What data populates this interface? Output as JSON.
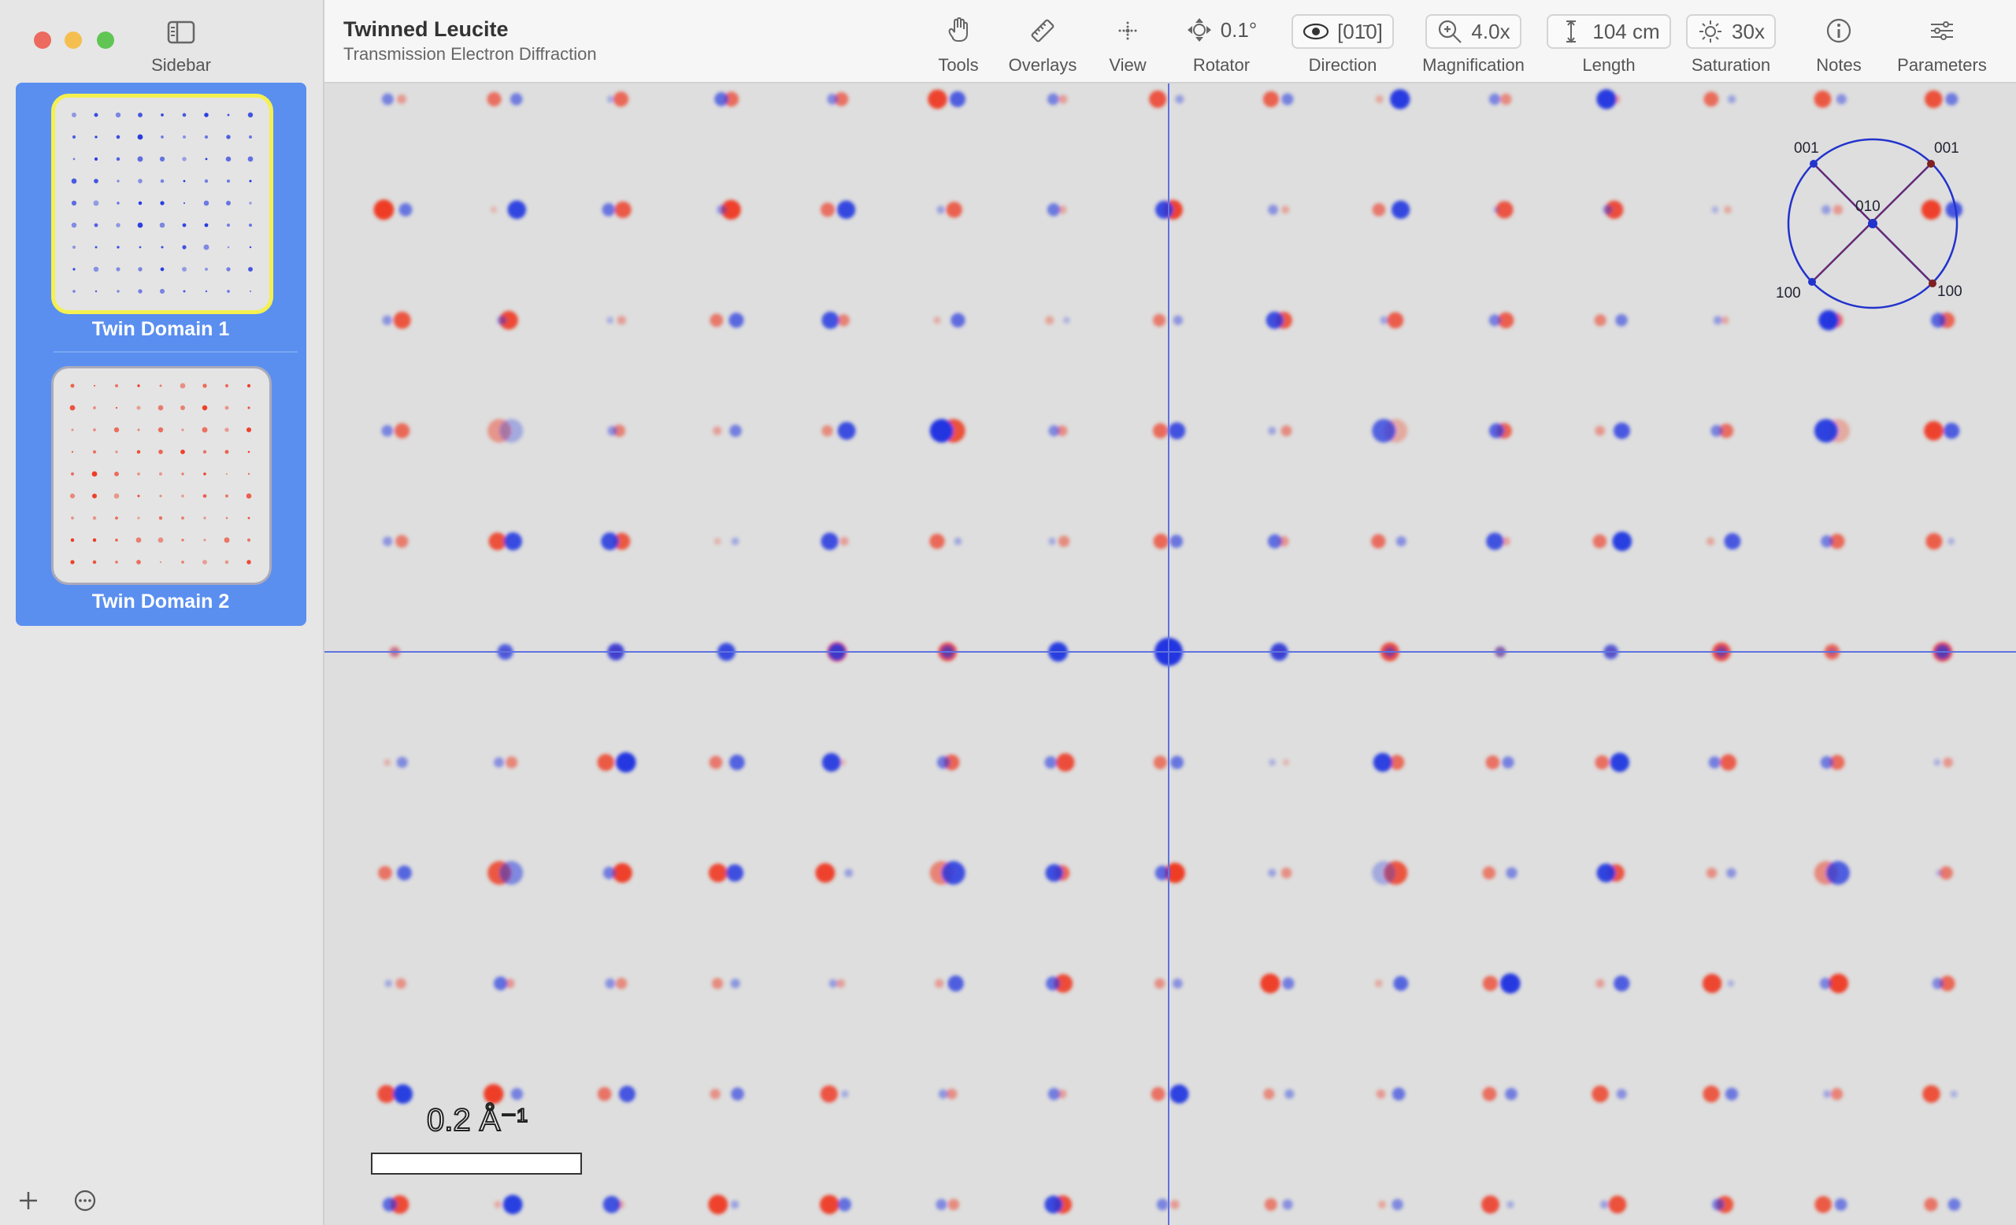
{
  "sidebar": {
    "label": "Sidebar",
    "items": [
      {
        "label": "Twin Domain 1"
      },
      {
        "label": "Twin Domain 2"
      }
    ]
  },
  "header": {
    "title": "Twinned Leucite",
    "subtitle": "Transmission Electron Diffraction"
  },
  "toolbar": [
    {
      "label": "Tools"
    },
    {
      "label": "Overlays"
    },
    {
      "label": "View"
    },
    {
      "label": "Rotator",
      "value": "0.1°"
    },
    {
      "label": "Direction",
      "value": "[01̄0]"
    },
    {
      "label": "Magnification",
      "value": "4.0x"
    },
    {
      "label": "Length",
      "value": "104 cm"
    },
    {
      "label": "Saturation",
      "value": "30x"
    },
    {
      "label": "Notes"
    },
    {
      "label": "Parameters"
    }
  ],
  "scale_bar": {
    "label": "0.2 Å⁻¹"
  },
  "orientation": {
    "labels": [
      "001",
      "001",
      "100",
      "100",
      "010"
    ]
  }
}
